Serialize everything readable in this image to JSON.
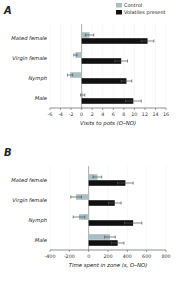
{
  "chart_data": [
    {
      "type": "bar",
      "orientation": "horizontal",
      "title": "A",
      "categories": [
        "Mated female",
        "Virgin female",
        "Nymph",
        "Male"
      ],
      "series": [
        {
          "name": "Control",
          "color": "#a8bfc2",
          "values": [
            1.5,
            -1.2,
            -2.2,
            0.2
          ],
          "errors": [
            0.8,
            0.3,
            0.5,
            0.4
          ]
        },
        {
          "name": "Volatiles present",
          "color": "#111111",
          "values": [
            12.5,
            7.5,
            8.5,
            9.8
          ],
          "errors": [
            1.2,
            1.2,
            1.0,
            1.5
          ]
        }
      ],
      "xlabel": "Visits to pots (O–NO)",
      "xlim": [
        -6,
        16
      ],
      "xticks": [
        -6,
        -4,
        -2,
        0,
        2,
        4,
        6,
        8,
        10,
        12,
        14,
        16
      ],
      "legend": "upper right"
    },
    {
      "type": "bar",
      "orientation": "horizontal",
      "title": "B",
      "categories": [
        "Mated female",
        "Virgin female",
        "Nymph",
        "Male"
      ],
      "series": [
        {
          "color": "#a8bfc2",
          "values": [
            90,
            -130,
            -100,
            220
          ],
          "errors": [
            45,
            55,
            60,
            55
          ]
        },
        {
          "color": "#111111",
          "values": [
            380,
            270,
            460,
            300
          ],
          "errors": [
            80,
            65,
            90,
            65
          ]
        }
      ],
      "xlabel": "Time spent in zone (s, O–NO)",
      "xlim": [
        -400,
        800
      ],
      "xticks": [
        -400,
        -200,
        0,
        200,
        400,
        600,
        800
      ]
    }
  ]
}
